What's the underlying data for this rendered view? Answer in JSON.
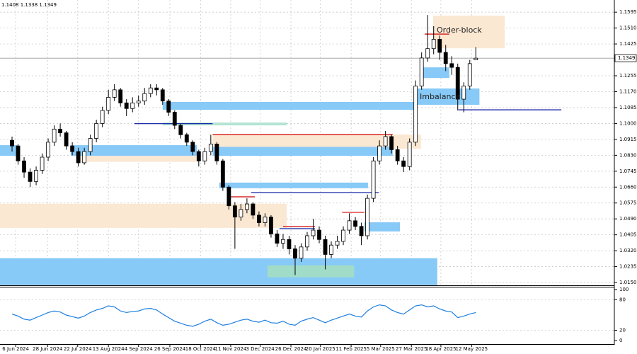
{
  "chart_data": {
    "type": "candlestick",
    "title": "1.1408 1.1338 1.1349",
    "annotations": [
      "Order-block",
      "Imbalance"
    ],
    "xlim": [
      -2,
      100
    ],
    "xticks": [
      {
        "value": 0.6,
        "label": "6 Jun 2024"
      },
      {
        "value": 5.9,
        "label": "28 Jun 2024"
      },
      {
        "value": 10.9,
        "label": "22 Jul 2024"
      },
      {
        "value": 16,
        "label": "13 Aug 2024"
      },
      {
        "value": 21,
        "label": "4 Sep 2024"
      },
      {
        "value": 26.2,
        "label": "26 Sep 2024"
      },
      {
        "value": 31.3,
        "label": "18 Oct 2024"
      },
      {
        "value": 36.3,
        "label": "11 Nov 2024"
      },
      {
        "value": 41.2,
        "label": "3 Dec 2024"
      },
      {
        "value": 46.3,
        "label": "26 Dec 2024"
      },
      {
        "value": 51.2,
        "label": "20 Jan 2025"
      },
      {
        "value": 56.3,
        "label": "11 Feb 2025"
      },
      {
        "value": 61.2,
        "label": "5 Mar 2025"
      },
      {
        "value": 66.3,
        "label": "27 Mar 2025"
      },
      {
        "value": 71.2,
        "label": "18 Apr 2025"
      },
      {
        "value": 76.3,
        "label": "12 May 2025"
      }
    ],
    "ylim": [
      1.0135,
      1.166
    ],
    "yticks": [
      1.1595,
      {
        "value": 1.151,
        "label": "1.1510"
      },
      1.1425,
      1.1255,
      {
        "value": 1.117,
        "label": "1.1170"
      },
      1.1085,
      {
        "value": 1.1,
        "label": "1.1000"
      },
      1.0915,
      {
        "value": 1.083,
        "label": "1.0830"
      },
      1.0745,
      {
        "value": 1.066,
        "label": "1.0660"
      },
      1.0575,
      {
        "value": 1.049,
        "label": "1.0490"
      },
      1.0405,
      {
        "value": 1.032,
        "label": "1.0320"
      },
      1.0235,
      {
        "value": 1.015,
        "label": "1.0150"
      }
    ],
    "grid": true,
    "current_price": 1.1349,
    "up_color": "#ffffff",
    "down_color": "#000000",
    "ohlc": [
      [
        1.091,
        1.093,
        1.085,
        1.088
      ],
      [
        1.088,
        1.089,
        1.078,
        1.08
      ],
      [
        1.08,
        1.082,
        1.071,
        1.074
      ],
      [
        1.074,
        1.076,
        1.066,
        1.069
      ],
      [
        1.069,
        1.077,
        1.067,
        1.075
      ],
      [
        1.075,
        1.084,
        1.073,
        1.082
      ],
      [
        1.082,
        1.092,
        1.08,
        1.09
      ],
      [
        1.09,
        1.099,
        1.088,
        1.097
      ],
      [
        1.097,
        1.1,
        1.093,
        1.095
      ],
      [
        1.095,
        1.096,
        1.086,
        1.088
      ],
      [
        1.088,
        1.09,
        1.083,
        1.085
      ],
      [
        1.085,
        1.087,
        1.077,
        1.079
      ],
      [
        1.079,
        1.087,
        1.078,
        1.085
      ],
      [
        1.085,
        1.094,
        1.083,
        1.092
      ],
      [
        1.092,
        1.102,
        1.09,
        1.1
      ],
      [
        1.1,
        1.109,
        1.098,
        1.107
      ],
      [
        1.107,
        1.118,
        1.105,
        1.114
      ],
      [
        1.114,
        1.121,
        1.112,
        1.118
      ],
      [
        1.118,
        1.119,
        1.109,
        1.111
      ],
      [
        1.111,
        1.113,
        1.104,
        1.108
      ],
      [
        1.108,
        1.114,
        1.106,
        1.111
      ],
      [
        1.111,
        1.115,
        1.109,
        1.112
      ],
      [
        1.112,
        1.119,
        1.11,
        1.116
      ],
      [
        1.116,
        1.121,
        1.114,
        1.119
      ],
      [
        1.119,
        1.121,
        1.115,
        1.118
      ],
      [
        1.118,
        1.119,
        1.11,
        1.112
      ],
      [
        1.112,
        1.113,
        1.104,
        1.106
      ],
      [
        1.106,
        1.107,
        1.097,
        1.099
      ],
      [
        1.099,
        1.1,
        1.092,
        1.094
      ],
      [
        1.094,
        1.095,
        1.088,
        1.09
      ],
      [
        1.09,
        1.091,
        1.083,
        1.085
      ],
      [
        1.085,
        1.086,
        1.077,
        1.08
      ],
      [
        1.08,
        1.087,
        1.078,
        1.085
      ],
      [
        1.085,
        1.094,
        1.083,
        1.089
      ],
      [
        1.089,
        1.09,
        1.078,
        1.08
      ],
      [
        1.08,
        1.081,
        1.064,
        1.066
      ],
      [
        1.066,
        1.067,
        1.054,
        1.056
      ],
      [
        1.056,
        1.058,
        1.033,
        1.05
      ],
      [
        1.05,
        1.057,
        1.048,
        1.054
      ],
      [
        1.054,
        1.06,
        1.052,
        1.057
      ],
      [
        1.057,
        1.058,
        1.049,
        1.051
      ],
      [
        1.051,
        1.053,
        1.045,
        1.047
      ],
      [
        1.047,
        1.052,
        1.045,
        1.05
      ],
      [
        1.05,
        1.051,
        1.039,
        1.041
      ],
      [
        1.041,
        1.043,
        1.034,
        1.036
      ],
      [
        1.036,
        1.041,
        1.033,
        1.038
      ],
      [
        1.038,
        1.04,
        1.03,
        1.033
      ],
      [
        1.033,
        1.035,
        1.019,
        1.028
      ],
      [
        1.028,
        1.036,
        1.026,
        1.034
      ],
      [
        1.034,
        1.042,
        1.032,
        1.04
      ],
      [
        1.04,
        1.049,
        1.038,
        1.043
      ],
      [
        1.043,
        1.045,
        1.036,
        1.038
      ],
      [
        1.038,
        1.04,
        1.022,
        1.03
      ],
      [
        1.03,
        1.037,
        1.028,
        1.035
      ],
      [
        1.035,
        1.04,
        1.033,
        1.037
      ],
      [
        1.037,
        1.045,
        1.035,
        1.043
      ],
      [
        1.043,
        1.052,
        1.041,
        1.048
      ],
      [
        1.048,
        1.05,
        1.043,
        1.045
      ],
      [
        1.045,
        1.047,
        1.035,
        1.04
      ],
      [
        1.04,
        1.062,
        1.038,
        1.06
      ],
      [
        1.06,
        1.082,
        1.058,
        1.08
      ],
      [
        1.08,
        1.091,
        1.078,
        1.088
      ],
      [
        1.088,
        1.096,
        1.086,
        1.093
      ],
      [
        1.093,
        1.094,
        1.084,
        1.086
      ],
      [
        1.086,
        1.088,
        1.078,
        1.08
      ],
      [
        1.08,
        1.082,
        1.074,
        1.077
      ],
      [
        1.077,
        1.092,
        1.075,
        1.09
      ],
      [
        1.09,
        1.123,
        1.088,
        1.12
      ],
      [
        1.12,
        1.138,
        1.118,
        1.135
      ],
      [
        1.135,
        1.158,
        1.133,
        1.14
      ],
      [
        1.14,
        1.152,
        1.137,
        1.145
      ],
      [
        1.145,
        1.147,
        1.134,
        1.138
      ],
      [
        1.138,
        1.142,
        1.128,
        1.132
      ],
      [
        1.132,
        1.136,
        1.126,
        1.13
      ],
      [
        1.13,
        1.132,
        1.107,
        1.113
      ],
      [
        1.113,
        1.122,
        1.106,
        1.12
      ],
      [
        1.12,
        1.134,
        1.118,
        1.132
      ],
      [
        1.134,
        1.1408,
        1.1338,
        1.1349
      ]
    ],
    "zones": [
      {
        "x": [
          -2,
          70.6
        ],
        "y": [
          1.0136,
          1.028
        ],
        "color": "#87c9f7"
      },
      {
        "x": [
          -2,
          45.6
        ],
        "y": [
          1.0442,
          1.0571
        ],
        "color": "#fbe8d3"
      },
      {
        "x": [
          25,
          45.6
        ],
        "y": [
          1.099,
          1.1005
        ],
        "color": "#b4e4d2"
      },
      {
        "x": [
          25,
          66.7
        ],
        "y": [
          1.1073,
          1.1115
        ],
        "color": "#87c9f7"
      },
      {
        "x": [
          11,
          30.7
        ],
        "y": [
          1.0795,
          1.0827
        ],
        "color": "#fbe8d3"
      },
      {
        "x": [
          9.75,
          30.7
        ],
        "y": [
          1.0827,
          1.0884
        ],
        "color": "#87c9f7"
      },
      {
        "x": [
          33.3,
          67.9
        ],
        "y": [
          1.0865,
          1.0941
        ],
        "color": "#fbe8d3"
      },
      {
        "x": [
          33.3,
          63.2
        ],
        "y": [
          1.0827,
          1.0875
        ],
        "color": "#87c9f7"
      },
      {
        "x": [
          34.4,
          59.1
        ],
        "y": [
          1.0654,
          1.0684
        ],
        "color": "#87c9f7"
      },
      {
        "x": [
          58.5,
          64.4
        ],
        "y": [
          1.0423,
          1.0472
        ],
        "color": "#87c9f7"
      },
      {
        "x": [
          42.4,
          56.8
        ],
        "y": [
          1.0178,
          1.0242
        ],
        "color": "#a0dcc8"
      },
      {
        "x": [
          69.9,
          81.8
        ],
        "y": [
          1.1402,
          1.1576
        ],
        "color": "#fbe8d3"
      },
      {
        "x": [
          67.3,
          77.6
        ],
        "y": [
          1.11,
          1.1187
        ],
        "color": "#87c9f7"
      },
      {
        "x": [
          68,
          72.6
        ],
        "y": [
          1.1243,
          1.13
        ],
        "color": "#87c9f7"
      },
      {
        "x": [
          -2,
          0.9
        ],
        "y": [
          1.0827,
          1.0884
        ],
        "color": "#87c9f7"
      }
    ],
    "levels": [
      {
        "x": [
          68.5,
          72.6
        ],
        "y": 1.1478,
        "color": "#d00000"
      },
      {
        "x": [
          74.1,
          91.2
        ],
        "y": 1.1073,
        "color": "#0010a0"
      },
      {
        "x": [
          33.3,
          63.2
        ],
        "y": 1.0941,
        "color": "#d00000"
      },
      {
        "x": [
          39.7,
          60.9
        ],
        "y": 1.0631,
        "color": "#0010a0"
      },
      {
        "x": [
          20.3,
          33.3
        ],
        "y": 1.0999,
        "color": "#0010a0"
      },
      {
        "x": [
          36.2,
          40.3
        ],
        "y": 1.0608,
        "color": "#d00000"
      },
      {
        "x": [
          45,
          50.3
        ],
        "y": 1.0449,
        "color": "#d00000"
      },
      {
        "x": [
          44.4,
          50.3
        ],
        "y": 1.0438,
        "color": "#0010a0"
      },
      {
        "x": [
          54.8,
          58.5
        ],
        "y": 1.0525,
        "color": "#d00000"
      }
    ],
    "indicator": {
      "ylim": [
        0,
        100
      ],
      "yticks": [
        100,
        80,
        20,
        0
      ],
      "color": "#1e7fe0",
      "values": [
        52,
        48,
        42,
        40,
        45,
        50,
        55,
        58,
        56,
        50,
        47,
        44,
        48,
        55,
        60,
        63,
        68,
        66,
        58,
        55,
        57,
        58,
        62,
        63,
        60,
        52,
        45,
        38,
        34,
        30,
        28,
        32,
        38,
        42,
        35,
        30,
        32,
        36,
        40,
        42,
        38,
        36,
        40,
        35,
        34,
        38,
        32,
        30,
        38,
        42,
        45,
        40,
        35,
        40,
        44,
        48,
        52,
        48,
        46,
        58,
        66,
        70,
        68,
        60,
        55,
        52,
        60,
        68,
        70,
        66,
        68,
        62,
        58,
        56,
        45,
        48,
        52,
        55
      ]
    }
  }
}
